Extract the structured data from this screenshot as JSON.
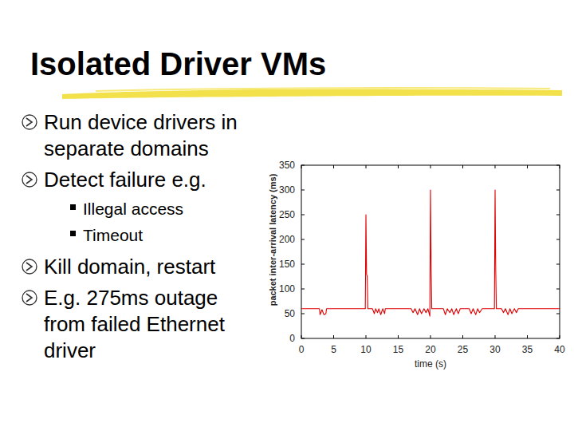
{
  "slide": {
    "title": "Isolated Driver VMs",
    "bullets": [
      {
        "lines": [
          "Run device drivers in",
          "separate domains"
        ]
      },
      {
        "lines": [
          "Detect failure e.g."
        ],
        "sub": [
          "Illegal access",
          "Timeout"
        ]
      },
      {
        "lines": [
          "Kill domain, restart"
        ]
      },
      {
        "lines": [
          "E.g. 275ms outage",
          "from failed Ethernet",
          "driver"
        ]
      }
    ]
  },
  "chart_data": {
    "type": "line",
    "x_label": "time (s)",
    "y_label": "packet inter-arrival latency (ms)",
    "color": "#e00000",
    "grid": false,
    "xlim": [
      0,
      40
    ],
    "xticks": [
      0,
      5,
      10,
      15,
      20,
      25,
      30,
      35,
      40
    ],
    "ylim": [
      0,
      350
    ],
    "yticks": [
      0,
      50,
      100,
      150,
      200,
      250,
      300,
      350
    ],
    "x": [
      0,
      1,
      2,
      2.8,
      2.9,
      3.2,
      3.5,
      3.8,
      3.9,
      5,
      6,
      7,
      8,
      9,
      9.9,
      10.0,
      10.1,
      10.2,
      10.3,
      10.5,
      11,
      11.3,
      11.5,
      11.8,
      12,
      12.3,
      12.6,
      12.9,
      13,
      14,
      15,
      16,
      17,
      17.3,
      17.6,
      18,
      18.3,
      18.6,
      19,
      19.3,
      19.6,
      19.9,
      20.0,
      20.1,
      20.2,
      20.4,
      21,
      22,
      22.3,
      22.6,
      23,
      23.3,
      23.6,
      24,
      24.3,
      24.6,
      25,
      26,
      26.3,
      26.6,
      27,
      27.3,
      27.6,
      28,
      29,
      29.8,
      29.9,
      30.0,
      30.1,
      30.2,
      30.4,
      31,
      31.3,
      31.6,
      32,
      32.3,
      32.6,
      33,
      33.3,
      33.6,
      34,
      35,
      36,
      37,
      38,
      39,
      40
    ],
    "values": [
      60,
      60,
      60,
      60,
      48,
      58,
      48,
      50,
      60,
      60,
      60,
      60,
      60,
      60,
      60,
      250,
      130,
      125,
      60,
      60,
      60,
      50,
      60,
      52,
      60,
      48,
      60,
      50,
      60,
      60,
      60,
      60,
      60,
      52,
      60,
      48,
      60,
      50,
      60,
      52,
      60,
      45,
      300,
      140,
      60,
      60,
      60,
      60,
      48,
      60,
      52,
      60,
      48,
      60,
      50,
      60,
      60,
      60,
      50,
      60,
      48,
      60,
      52,
      60,
      60,
      60,
      60,
      300,
      140,
      60,
      60,
      60,
      52,
      60,
      48,
      60,
      50,
      60,
      52,
      60,
      60,
      60,
      60,
      60,
      60,
      60,
      60
    ]
  }
}
